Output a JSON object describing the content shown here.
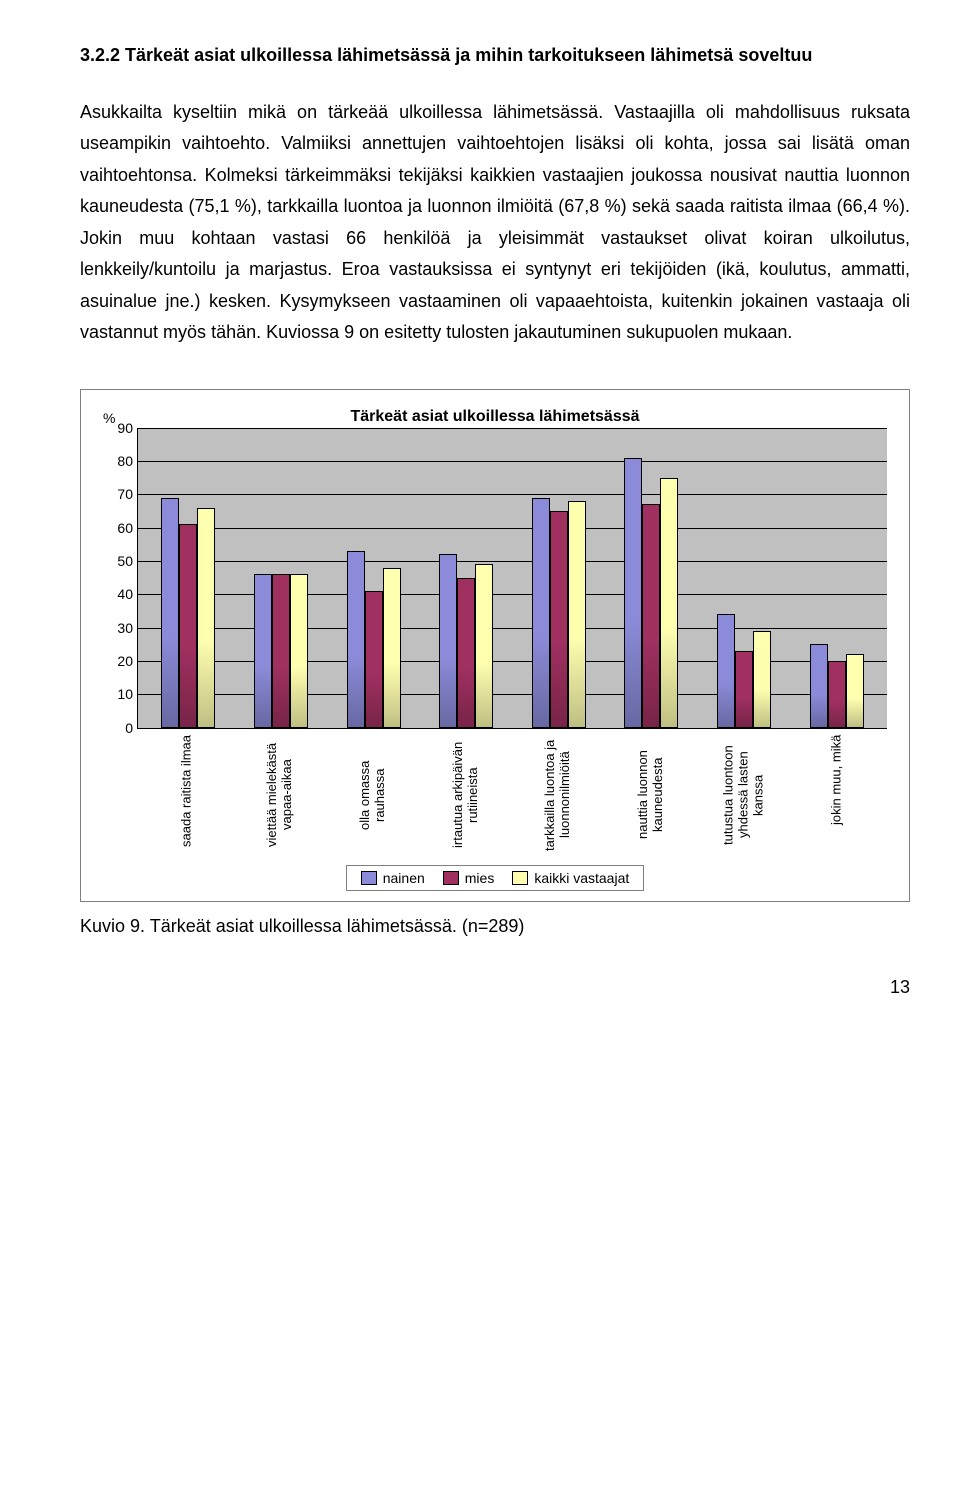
{
  "heading": "3.2.2 Tärkeät asiat ulkoillessa lähimetsässä ja mihin tarkoitukseen lähimetsä soveltuu",
  "paragraph": "Asukkailta kyseltiin mikä on tärkeää ulkoillessa lähimetsässä. Vastaajilla oli mahdollisuus ruksata useampikin vaihtoehto. Valmiiksi annettujen vaihtoehtojen lisäksi oli kohta, jossa sai lisätä oman vaihtoehtonsa. Kolmeksi tärkeimmäksi tekijäksi kaikkien vastaajien joukossa nousivat nauttia luonnon kauneudesta (75,1 %), tarkkailla luontoa ja luonnon ilmiöitä (67,8 %) sekä saada raitista ilmaa (66,4 %). Jokin muu kohtaan vastasi 66 henkilöä ja yleisimmät vastaukset olivat koiran ulkoilutus, lenkkeily/kuntoilu ja marjastus. Eroa vastauksissa ei syntynyt eri tekijöiden (ikä, koulutus, ammatti, asuinalue jne.) kesken. Kysymykseen vastaaminen oli vapaaehtoista, kuitenkin jokainen vastaaja oli vastannut myös tähän. Kuviossa 9 on esitetty tulosten jakautuminen sukupuolen mukaan.",
  "chart": {
    "type": "bar",
    "title": "Tärkeät asiat ulkoillessa lähimetsässä",
    "y_suffix": "%",
    "ylim": [
      0,
      90
    ],
    "ytick_step": 10,
    "plot_background": "#c0c0c0",
    "grid_color": "#000000",
    "categories": [
      "saada raitista ilmaa",
      "viettää mielekästä vapaa-aikaa",
      "olla omassa rauhassa",
      "irtautua arkipäivän rutiineista",
      "tarkkailla luontoa ja luonnonilmiöitä",
      "nauttia luonnon kauneudesta",
      "tutustua luontoon yhdessä lasten kanssa",
      "jokin muu, mikä"
    ],
    "series": [
      {
        "name": "nainen",
        "color": "#8b8bd9",
        "values": [
          69,
          46,
          53,
          52,
          69,
          81,
          34,
          25
        ]
      },
      {
        "name": "mies",
        "color": "#a03060",
        "values": [
          61,
          46,
          41,
          45,
          65,
          67,
          23,
          20
        ]
      },
      {
        "name": "kaikki vastaajat",
        "color": "#ffffb0",
        "values": [
          66,
          46,
          48,
          49,
          68,
          75,
          29,
          22
        ]
      }
    ]
  },
  "caption": "Kuvio 9. Tärkeät asiat ulkoillessa lähimetsässä. (n=289)",
  "page_number": "13"
}
